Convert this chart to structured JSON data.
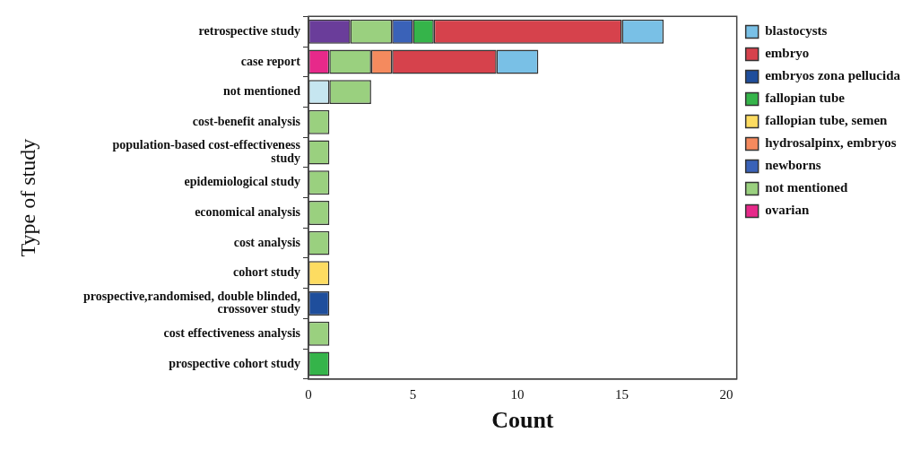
{
  "chart_data": {
    "type": "bar",
    "orientation": "horizontal",
    "stacked": true,
    "xlabel": "Count",
    "ylabel": "Type of study",
    "categories": [
      "retrospective study",
      "case report",
      "not mentioned",
      "cost-benefit analysis",
      "population-based cost-effectiveness study",
      "epidemiological study",
      "economical analysis",
      "cost analysis",
      "cohort study",
      "prospective,randomised, double blinded, crossover study",
      "cost effectiveness analysis",
      "prospective cohort study"
    ],
    "series": [
      {
        "color": "#6a3d9a",
        "values": [
          2,
          null,
          null,
          null,
          null,
          null,
          null,
          null,
          null,
          null,
          null,
          null
        ]
      },
      {
        "color": "#c6e6f0",
        "values": [
          null,
          null,
          1,
          null,
          null,
          null,
          null,
          null,
          null,
          null,
          null,
          null
        ]
      },
      {
        "name": "ovarian",
        "color": "#e7298a",
        "values": [
          null,
          1,
          null,
          null,
          null,
          null,
          null,
          null,
          null,
          null,
          null,
          null
        ]
      },
      {
        "name": "not mentioned",
        "color": "#9ad07f",
        "values": [
          2,
          2,
          2,
          1,
          1,
          1,
          1,
          1,
          null,
          null,
          1,
          null
        ]
      },
      {
        "name": "newborns",
        "color": "#3a62b8",
        "values": [
          1,
          null,
          null,
          null,
          null,
          null,
          null,
          null,
          null,
          null,
          null,
          null
        ]
      },
      {
        "name": "hydrosalpinx, embryos",
        "color": "#f58a5e",
        "values": [
          null,
          1,
          null,
          null,
          null,
          null,
          null,
          null,
          null,
          null,
          null,
          null
        ]
      },
      {
        "name": "fallopian tube, semen",
        "color": "#fddc61",
        "values": [
          null,
          null,
          null,
          null,
          null,
          null,
          null,
          null,
          1,
          null,
          null,
          null
        ]
      },
      {
        "name": "fallopian tube",
        "color": "#35b44a",
        "values": [
          1,
          null,
          null,
          null,
          null,
          null,
          null,
          null,
          null,
          null,
          null,
          1
        ]
      },
      {
        "name": "embryos zona pellucida",
        "color": "#1f4e9c",
        "values": [
          null,
          null,
          null,
          null,
          null,
          null,
          null,
          null,
          null,
          1,
          null,
          null
        ]
      },
      {
        "name": "embryo",
        "color": "#d6424c",
        "values": [
          9,
          5,
          null,
          null,
          null,
          null,
          null,
          null,
          null,
          null,
          null,
          null
        ]
      },
      {
        "name": "blastocysts",
        "color": "#79c0e6",
        "values": [
          2,
          2,
          null,
          null,
          null,
          null,
          null,
          null,
          null,
          null,
          null,
          null
        ]
      }
    ],
    "xlim": [
      0,
      20.5
    ],
    "xticks": [
      0,
      5,
      10,
      15,
      20
    ],
    "grid": false,
    "legend": "top right"
  }
}
